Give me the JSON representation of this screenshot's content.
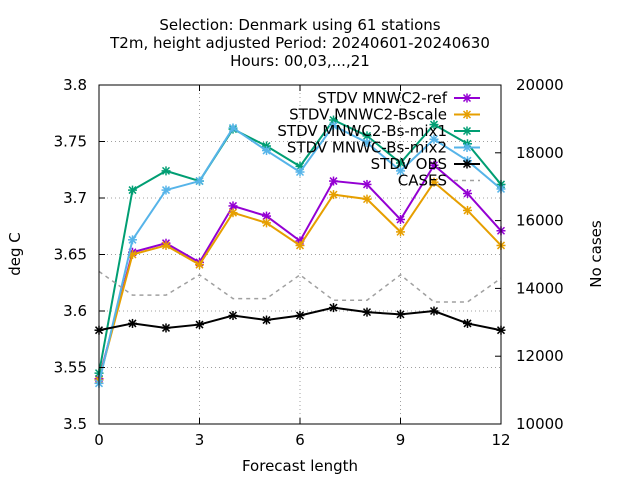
{
  "chart_data": {
    "type": "line",
    "title_lines": [
      "Selection: Denmark using    61 stations",
      "T2m, height adjusted   Period: 20240601-20240630",
      "Hours: 00,03,...,21"
    ],
    "xlabel": "Forecast length",
    "ylabel": "deg C",
    "y2label": "No cases",
    "xlim": [
      0,
      12
    ],
    "ylim": [
      3.5,
      3.8
    ],
    "y2lim": [
      10000,
      20000
    ],
    "xticks": [
      0,
      3,
      6,
      9,
      12
    ],
    "xtick_labels": [
      "0",
      "3",
      "6",
      "9",
      "12"
    ],
    "yticks": [
      3.5,
      3.55,
      3.6,
      3.65,
      3.7,
      3.75,
      3.8
    ],
    "ytick_labels": [
      "3.5",
      "3.55",
      "3.6",
      "3.65",
      "3.7",
      "3.75",
      "3.8"
    ],
    "y2ticks": [
      10000,
      12000,
      14000,
      16000,
      18000,
      20000
    ],
    "y2tick_labels": [
      "10000",
      "12000",
      "14000",
      "16000",
      "18000",
      "20000"
    ],
    "grid": true,
    "legend_position": "top-right",
    "x": [
      0,
      1,
      2,
      3,
      4,
      5,
      6,
      7,
      8,
      9,
      10,
      11,
      12
    ],
    "series": [
      {
        "name": "STDV MNWC2-ref",
        "color": "#9400d3",
        "axis": "y",
        "style": "solid",
        "values": [
          3.54,
          3.652,
          3.66,
          3.643,
          3.693,
          3.684,
          3.662,
          3.715,
          3.712,
          3.681,
          3.729,
          3.704,
          3.671
        ]
      },
      {
        "name": "STDV MNWC2-Bscale",
        "color": "#e69f00",
        "axis": "y",
        "style": "solid",
        "values": [
          3.539,
          3.65,
          3.658,
          3.641,
          3.687,
          3.678,
          3.658,
          3.703,
          3.699,
          3.67,
          3.714,
          3.689,
          3.658
        ]
      },
      {
        "name": "STDV MNWC2-Bs-mix1",
        "color": "#009e73",
        "axis": "y",
        "style": "solid",
        "values": [
          3.545,
          3.707,
          3.724,
          3.715,
          3.761,
          3.746,
          3.728,
          3.769,
          3.755,
          3.731,
          3.765,
          3.748,
          3.712
        ]
      },
      {
        "name": "STDV MNWC-Bs-mix2",
        "color": "#56b4e9",
        "axis": "y",
        "style": "solid",
        "values": [
          3.536,
          3.663,
          3.707,
          3.715,
          3.762,
          3.742,
          3.723,
          3.764,
          3.749,
          3.724,
          3.752,
          3.733,
          3.708
        ]
      },
      {
        "name": "STDV OBS",
        "color": "#000000",
        "axis": "y",
        "style": "solid",
        "values": [
          3.583,
          3.589,
          3.585,
          3.588,
          3.596,
          3.592,
          3.596,
          3.603,
          3.599,
          3.597,
          3.6,
          3.589,
          3.583
        ]
      },
      {
        "name": "CASES",
        "color": "#a0a0a0",
        "axis": "y2",
        "style": "dashed",
        "values": [
          14500,
          13800,
          13800,
          14400,
          13700,
          13700,
          14400,
          13650,
          13650,
          14400,
          13600,
          13600,
          14300
        ]
      }
    ]
  }
}
